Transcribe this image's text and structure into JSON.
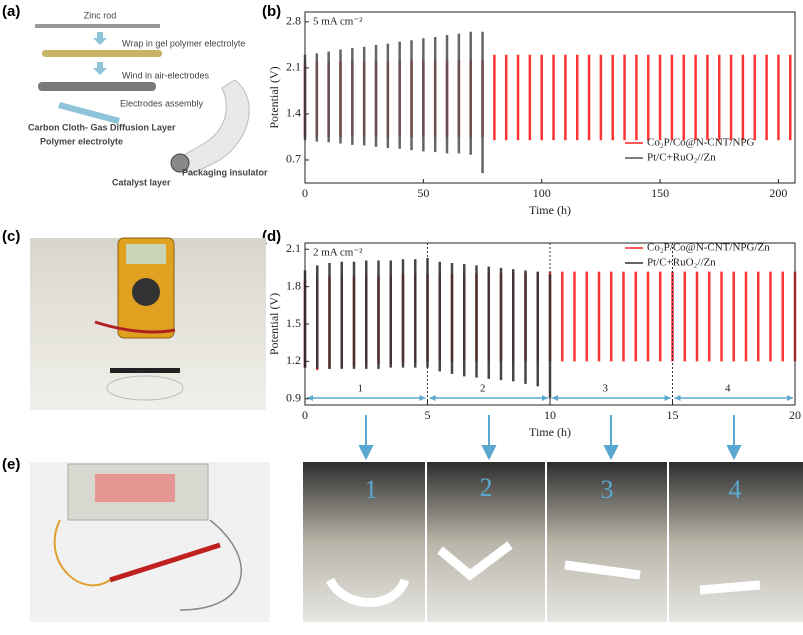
{
  "panel_labels": {
    "a": "(a)",
    "b": "(b)",
    "c": "(c)",
    "d": "(d)",
    "e": "(e)"
  },
  "schematic": {
    "steps": [
      "Zinc rod",
      "Wrap in gel polymer electrolyte",
      "Wind in air-electrodes",
      "Electrodes assembly"
    ],
    "layers": [
      "Carbon Cloth- Gas Diffusion Layer",
      "Polymer electrolyte",
      "Catalyst layer",
      "Packaging insulator"
    ]
  },
  "photos": [
    {
      "label": "1"
    },
    {
      "label": "2"
    },
    {
      "label": "3"
    },
    {
      "label": "4"
    }
  ],
  "chart_data": [
    {
      "type": "line",
      "annotation": "5 mA cm⁻²",
      "x_label": "Time (h)",
      "y_label": "Potential (V)",
      "xlim": [
        0,
        207
      ],
      "ylim": [
        0.35,
        2.95
      ],
      "xticks": [
        0,
        50,
        100,
        150,
        200
      ],
      "yticks": [
        0.7,
        1.4,
        2.1,
        2.8
      ],
      "legend": "lower right",
      "series": [
        {
          "name": "Co₂P/Co@N-CNT/NPG",
          "color": "#ff2020",
          "x": [
            0,
            5,
            10,
            15,
            20,
            25,
            30,
            35,
            40,
            45,
            50,
            55,
            60,
            65,
            70,
            75,
            80,
            85,
            90,
            95,
            100,
            105,
            110,
            115,
            120,
            125,
            130,
            135,
            140,
            145,
            150,
            155,
            160,
            165,
            170,
            175,
            180,
            185,
            190,
            195,
            200,
            205
          ],
          "values": [
            2.18,
            2.2,
            2.2,
            2.2,
            2.2,
            2.2,
            2.2,
            2.2,
            2.21,
            2.21,
            2.21,
            2.21,
            2.21,
            2.22,
            2.22,
            2.22,
            2.3,
            2.3,
            2.3,
            2.3,
            2.3,
            2.3,
            2.3,
            2.3,
            2.3,
            2.3,
            2.3,
            2.3,
            2.3,
            2.3,
            2.3,
            2.3,
            2.3,
            2.3,
            2.3,
            2.3,
            2.3,
            2.3,
            2.3,
            2.3,
            2.3,
            2.3
          ],
          "lower": [
            1.05,
            1.05,
            1.05,
            1.05,
            1.05,
            1.05,
            1.05,
            1.05,
            1.05,
            1.05,
            1.05,
            1.05,
            1.05,
            1.05,
            1.05,
            1.05,
            1.0,
            1.0,
            1.0,
            1.0,
            1.0,
            1.0,
            1.0,
            1.0,
            1.0,
            1.0,
            1.0,
            1.0,
            1.0,
            1.0,
            1.0,
            1.0,
            1.0,
            1.0,
            1.0,
            1.0,
            1.0,
            1.0,
            1.0,
            1.0,
            1.0,
            1.0
          ]
        },
        {
          "name": "Pt/C+RuO₂//Zn",
          "color": "#555555",
          "x": [
            0,
            5,
            10,
            15,
            20,
            25,
            30,
            35,
            40,
            45,
            50,
            55,
            60,
            65,
            70,
            75
          ],
          "values": [
            2.3,
            2.32,
            2.35,
            2.38,
            2.4,
            2.42,
            2.45,
            2.47,
            2.5,
            2.52,
            2.55,
            2.57,
            2.6,
            2.62,
            2.65,
            2.65
          ],
          "lower": [
            1.0,
            0.98,
            0.97,
            0.95,
            0.93,
            0.92,
            0.9,
            0.88,
            0.87,
            0.85,
            0.83,
            0.82,
            0.8,
            0.8,
            0.78,
            0.5
          ]
        }
      ]
    },
    {
      "type": "line",
      "annotation": "2 mA cm⁻²",
      "x_label": "Time (h)",
      "y_label": "Potential (V)",
      "xlim": [
        0,
        20
      ],
      "ylim": [
        0.85,
        2.15
      ],
      "xticks": [
        0,
        5,
        10,
        15,
        20
      ],
      "yticks": [
        0.9,
        1.2,
        1.5,
        1.8,
        2.1
      ],
      "legend": "upper right",
      "dividers": [
        5,
        10,
        15
      ],
      "segments": [
        {
          "label": "1",
          "range": [
            0,
            5
          ]
        },
        {
          "label": "2",
          "range": [
            5,
            10
          ]
        },
        {
          "label": "3",
          "range": [
            10,
            15
          ]
        },
        {
          "label": "4",
          "range": [
            15,
            20
          ]
        }
      ],
      "series": [
        {
          "name": "Co₂P/Co@N-CNT/NPG/Zn",
          "color": "#ff2020",
          "x": [
            0,
            0.5,
            1,
            1.5,
            2,
            2.5,
            3,
            3.5,
            4,
            4.5,
            5,
            5.5,
            6,
            6.5,
            7,
            7.5,
            8,
            8.5,
            9,
            9.5,
            10,
            10.5,
            11,
            11.5,
            12,
            12.5,
            13,
            13.5,
            14,
            14.5,
            15,
            15.5,
            16,
            16.5,
            17,
            17.5,
            18,
            18.5,
            19,
            19.5,
            20
          ],
          "values": [
            1.85,
            1.87,
            1.88,
            1.88,
            1.88,
            1.89,
            1.89,
            1.89,
            1.9,
            1.9,
            1.9,
            1.9,
            1.9,
            1.9,
            1.9,
            1.91,
            1.91,
            1.91,
            1.91,
            1.91,
            1.92,
            1.92,
            1.92,
            1.92,
            1.92,
            1.92,
            1.92,
            1.92,
            1.92,
            1.92,
            1.92,
            1.92,
            1.92,
            1.92,
            1.92,
            1.92,
            1.92,
            1.92,
            1.92,
            1.92,
            1.92
          ],
          "lower": [
            1.15,
            1.13,
            1.14,
            1.15,
            1.16,
            1.17,
            1.18,
            1.18,
            1.19,
            1.19,
            1.2,
            1.2,
            1.2,
            1.2,
            1.2,
            1.2,
            1.2,
            1.2,
            1.2,
            1.2,
            1.2,
            1.2,
            1.2,
            1.2,
            1.2,
            1.2,
            1.2,
            1.2,
            1.2,
            1.2,
            1.2,
            1.2,
            1.2,
            1.2,
            1.2,
            1.2,
            1.2,
            1.2,
            1.2,
            1.2,
            1.2
          ]
        },
        {
          "name": "Pt/C+RuO₂//Zn",
          "color": "#333333",
          "x": [
            0,
            0.5,
            1,
            1.5,
            2,
            2.5,
            3,
            3.5,
            4,
            4.5,
            5,
            5.5,
            6,
            6.5,
            7,
            7.5,
            8,
            8.5,
            9,
            9.5,
            10
          ],
          "values": [
            1.93,
            1.97,
            1.99,
            2.0,
            2.0,
            2.01,
            2.01,
            2.01,
            2.02,
            2.02,
            2.03,
            2.0,
            1.99,
            1.98,
            1.97,
            1.96,
            1.95,
            1.94,
            1.93,
            1.92,
            1.9
          ],
          "lower": [
            1.15,
            1.14,
            1.14,
            1.14,
            1.14,
            1.14,
            1.14,
            1.15,
            1.15,
            1.15,
            1.15,
            1.12,
            1.1,
            1.08,
            1.07,
            1.06,
            1.05,
            1.04,
            1.02,
            1.0,
            0.9
          ]
        }
      ]
    }
  ]
}
